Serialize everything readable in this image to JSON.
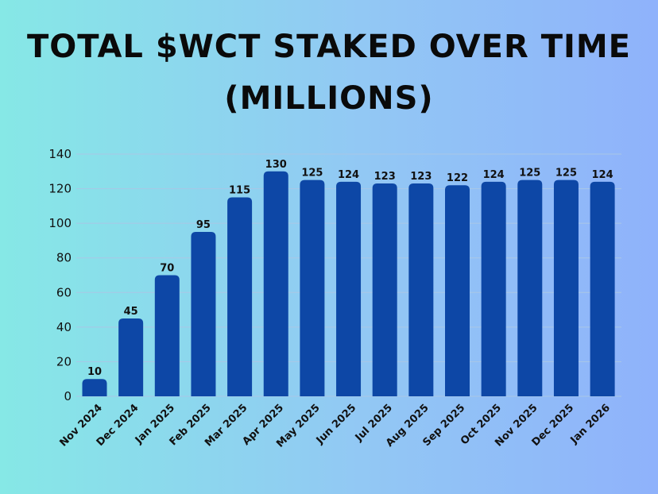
{
  "title_line1": "TOTAL $WCT STAKED OVER TIME",
  "title_line2": "(MILLIONS)",
  "colors": {
    "bar": "#0d47a6",
    "grid": "#a9c7e6",
    "text": "#111111"
  },
  "chart_data": {
    "type": "bar",
    "title": "TOTAL $WCT STAKED OVER TIME (MILLIONS)",
    "xlabel": "",
    "ylabel": "",
    "categories": [
      "Nov 2024",
      "Dec 2024",
      "Jan 2025",
      "Feb 2025",
      "Mar 2025",
      "Apr 2025",
      "May 2025",
      "Jun 2025",
      "Jul 2025",
      "Aug 2025",
      "Sep 2025",
      "Oct 2025",
      "Nov 2025",
      "Dec 2025",
      "Jan 2026"
    ],
    "values": [
      10,
      45,
      70,
      95,
      115,
      130,
      125,
      124,
      123,
      123,
      122,
      124,
      125,
      125,
      124
    ],
    "ylim": [
      0,
      140
    ],
    "yticks": [
      0,
      20,
      40,
      60,
      80,
      100,
      120,
      140
    ],
    "grid": true,
    "legend": "none"
  }
}
